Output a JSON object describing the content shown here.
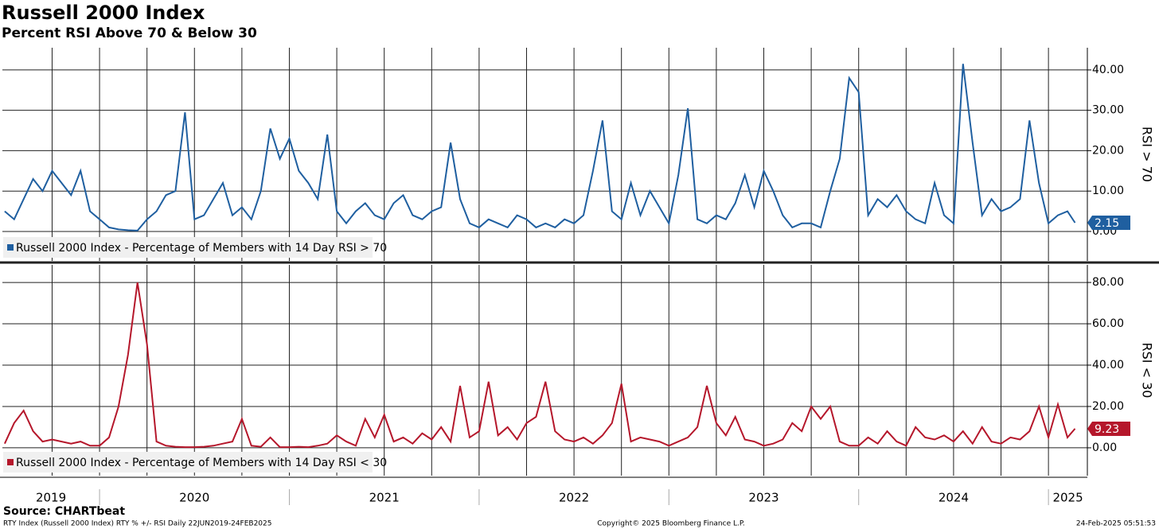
{
  "header": {
    "title": "Russell 2000 Index",
    "subtitle": "Percent RSI Above 70 & Below 30"
  },
  "x_axis": {
    "xticks": [
      2019,
      2020,
      2021,
      2022,
      2023,
      2024,
      2025
    ],
    "minor_xticks": [
      2019.75,
      2020,
      2020.25,
      2020.5,
      2020.75,
      2021,
      2021.25,
      2021.5,
      2021.75,
      2022,
      2022.25,
      2022.5,
      2022.75,
      2023,
      2023.25,
      2023.5,
      2023.75,
      2024,
      2024.25,
      2024.5,
      2024.75,
      2025
    ]
  },
  "chart_data": [
    {
      "type": "line",
      "ylabel": "RSI > 70",
      "xlim": [
        2019.488,
        2025.205
      ],
      "ylim": [
        -7.3,
        45.5
      ],
      "yticks": [
        {
          "value": 0,
          "label": "0.00"
        },
        {
          "value": 10,
          "label": "10.00"
        },
        {
          "value": 20,
          "label": "20.00"
        },
        {
          "value": 30,
          "label": "30.00"
        },
        {
          "value": 40,
          "label": "40.00"
        }
      ],
      "x": [
        2019.5,
        2019.55,
        2019.6,
        2019.65,
        2019.7,
        2019.75,
        2019.8,
        2019.85,
        2019.9,
        2019.95,
        2020,
        2020.05,
        2020.1,
        2020.15,
        2020.2,
        2020.25,
        2020.3,
        2020.35,
        2020.4,
        2020.45,
        2020.5,
        2020.55,
        2020.6,
        2020.65,
        2020.7,
        2020.75,
        2020.8,
        2020.85,
        2020.9,
        2020.95,
        2021,
        2021.05,
        2021.1,
        2021.15,
        2021.2,
        2021.25,
        2021.3,
        2021.35,
        2021.4,
        2021.45,
        2021.5,
        2021.55,
        2021.6,
        2021.65,
        2021.7,
        2021.75,
        2021.8,
        2021.85,
        2021.9,
        2021.95,
        2022,
        2022.05,
        2022.1,
        2022.15,
        2022.2,
        2022.25,
        2022.3,
        2022.35,
        2022.4,
        2022.45,
        2022.5,
        2022.55,
        2022.6,
        2022.65,
        2022.7,
        2022.75,
        2022.8,
        2022.85,
        2022.9,
        2022.95,
        2023,
        2023.05,
        2023.1,
        2023.15,
        2023.2,
        2023.25,
        2023.3,
        2023.35,
        2023.4,
        2023.45,
        2023.5,
        2023.55,
        2023.6,
        2023.65,
        2023.7,
        2023.75,
        2023.8,
        2023.85,
        2023.9,
        2023.95,
        2024,
        2024.05,
        2024.1,
        2024.15,
        2024.2,
        2024.25,
        2024.3,
        2024.35,
        2024.4,
        2024.45,
        2024.5,
        2024.55,
        2024.6,
        2024.65,
        2024.7,
        2024.75,
        2024.8,
        2024.85,
        2024.9,
        2024.95,
        2025,
        2025.05,
        2025.1,
        2025.14
      ],
      "series": [
        {
          "name": "Russell 2000 Index - Percentage of Members with 14 Day RSI > 70",
          "color": "#1f5fa0",
          "values": [
            5,
            3,
            8,
            13,
            10,
            15,
            12,
            9,
            15,
            5,
            3,
            1,
            0.5,
            0.3,
            0.2,
            3,
            5,
            9,
            10,
            29.5,
            3,
            4,
            8,
            12,
            4,
            6,
            3,
            10,
            25.5,
            18,
            23,
            15,
            12,
            8,
            24,
            5,
            2,
            5,
            7,
            4,
            3,
            7,
            9,
            4,
            3,
            5,
            6,
            22,
            8,
            2,
            1,
            3,
            2,
            1,
            4,
            3,
            1,
            2,
            1,
            3,
            2,
            4,
            15,
            27.5,
            5,
            3,
            12,
            4,
            10,
            6,
            2,
            14,
            30.5,
            3,
            2,
            4,
            3,
            7,
            14,
            6,
            15,
            10,
            4,
            1,
            2,
            2,
            1,
            10,
            18,
            38,
            34.5,
            4,
            8,
            6,
            9,
            5,
            3,
            2,
            12,
            4,
            2,
            41.5,
            22,
            4,
            8,
            5,
            6,
            8,
            27.5,
            12,
            2,
            4,
            5,
            2.15
          ]
        }
      ]
    },
    {
      "type": "line",
      "ylabel": "RSI < 30",
      "xlim": [
        2019.488,
        2025.205
      ],
      "ylim": [
        -13.5,
        88.5
      ],
      "yticks": [
        {
          "value": 0,
          "label": "0.00"
        },
        {
          "value": 20,
          "label": "20.00"
        },
        {
          "value": 40,
          "label": "40.00"
        },
        {
          "value": 60,
          "label": "60.00"
        },
        {
          "value": 80,
          "label": "80.00"
        }
      ],
      "x": [
        2019.5,
        2019.55,
        2019.6,
        2019.65,
        2019.7,
        2019.75,
        2019.8,
        2019.85,
        2019.9,
        2019.95,
        2020,
        2020.05,
        2020.1,
        2020.15,
        2020.2,
        2020.25,
        2020.3,
        2020.35,
        2020.4,
        2020.45,
        2020.5,
        2020.55,
        2020.6,
        2020.65,
        2020.7,
        2020.75,
        2020.8,
        2020.85,
        2020.9,
        2020.95,
        2021,
        2021.05,
        2021.1,
        2021.15,
        2021.2,
        2021.25,
        2021.3,
        2021.35,
        2021.4,
        2021.45,
        2021.5,
        2021.55,
        2021.6,
        2021.65,
        2021.7,
        2021.75,
        2021.8,
        2021.85,
        2021.9,
        2021.95,
        2022,
        2022.05,
        2022.1,
        2022.15,
        2022.2,
        2022.25,
        2022.3,
        2022.35,
        2022.4,
        2022.45,
        2022.5,
        2022.55,
        2022.6,
        2022.65,
        2022.7,
        2022.75,
        2022.8,
        2022.85,
        2022.9,
        2022.95,
        2023,
        2023.05,
        2023.1,
        2023.15,
        2023.2,
        2023.25,
        2023.3,
        2023.35,
        2023.4,
        2023.45,
        2023.5,
        2023.55,
        2023.6,
        2023.65,
        2023.7,
        2023.75,
        2023.8,
        2023.85,
        2023.9,
        2023.95,
        2024,
        2024.05,
        2024.1,
        2024.15,
        2024.2,
        2024.25,
        2024.3,
        2024.35,
        2024.4,
        2024.45,
        2024.5,
        2024.55,
        2024.6,
        2024.65,
        2024.7,
        2024.75,
        2024.8,
        2024.85,
        2024.9,
        2024.95,
        2025,
        2025.05,
        2025.1,
        2025.14
      ],
      "series": [
        {
          "name": "Russell 2000 Index - Percentage of Members with 14 Day RSI < 30",
          "color": "#b5172b",
          "values": [
            2,
            12,
            18,
            8,
            3,
            4,
            3,
            2,
            3,
            1,
            1,
            5,
            20,
            45,
            80,
            50,
            3,
            1,
            0.5,
            0.3,
            0.3,
            0.5,
            1,
            2,
            3,
            14,
            1,
            0.5,
            5,
            0.3,
            0.3,
            0.5,
            0.3,
            1,
            2,
            6,
            3,
            1,
            14,
            5,
            16,
            3,
            5,
            2,
            7,
            4,
            10,
            3,
            30,
            5,
            8,
            32,
            6,
            10,
            4,
            12,
            15,
            32,
            8,
            4,
            3,
            5,
            2,
            6,
            12,
            31,
            3,
            5,
            4,
            3,
            1,
            3,
            5,
            10,
            30,
            12,
            6,
            15,
            4,
            3,
            1,
            2,
            4,
            12,
            8,
            20,
            14,
            20,
            3,
            1,
            1,
            5,
            2,
            8,
            3,
            1,
            10,
            5,
            4,
            6,
            3,
            8,
            2,
            10,
            3,
            2,
            5,
            4,
            8,
            20,
            5,
            21,
            5,
            9.23
          ]
        }
      ]
    }
  ],
  "footer": {
    "source": "Source: CHARTbeat",
    "info": "RTY Index (Russell 2000 Index) RTY % +/- RSI  Daily 22JUN2019-24FEB2025",
    "copyright": "Copyright© 2025 Bloomberg Finance L.P.",
    "timestamp": "24-Feb-2025 05:51:53"
  }
}
